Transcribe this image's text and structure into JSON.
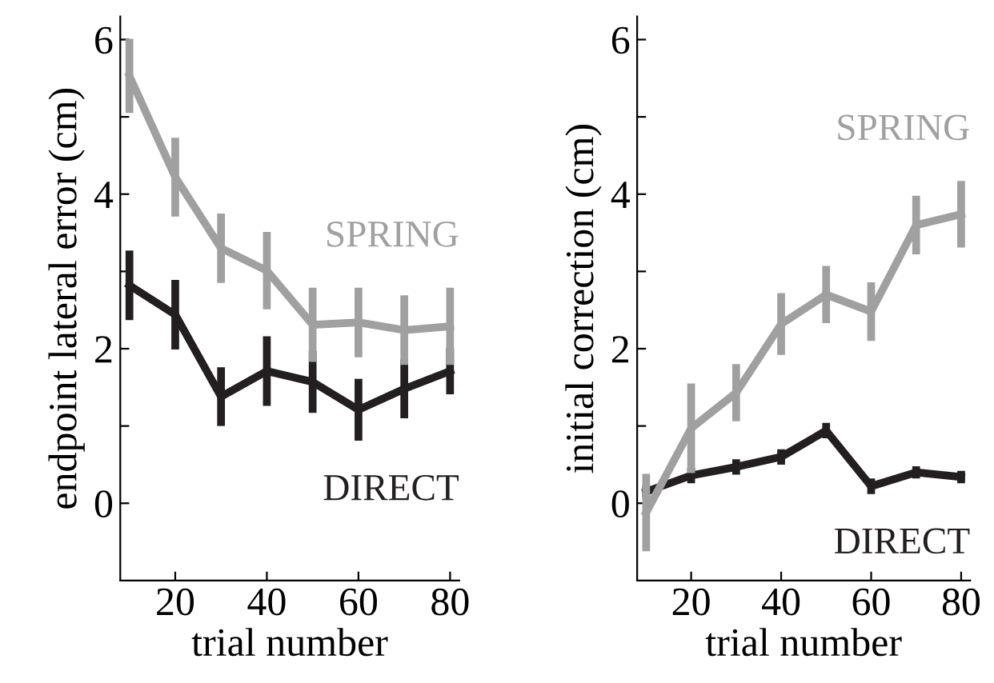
{
  "chart_data": [
    {
      "type": "line",
      "ylabel": "endpoint lateral error (cm)",
      "xlabel": "trial number",
      "x": [
        10,
        20,
        30,
        40,
        50,
        60,
        70,
        80
      ],
      "series": [
        {
          "name": "SPRING",
          "color": "#a0a0a0",
          "values": [
            5.53,
            4.22,
            3.3,
            3.01,
            2.31,
            2.34,
            2.24,
            2.29
          ],
          "errors": [
            0.48,
            0.51,
            0.45,
            0.5,
            0.48,
            0.45,
            0.45,
            0.5
          ]
        },
        {
          "name": "DIRECT",
          "color": "#231f20",
          "values": [
            2.82,
            2.44,
            1.38,
            1.71,
            1.57,
            1.21,
            1.48,
            1.71
          ],
          "errors": [
            0.45,
            0.45,
            0.38,
            0.45,
            0.4,
            0.4,
            0.38,
            0.3
          ]
        }
      ],
      "xlim": [
        8,
        82
      ],
      "ylim": [
        -1,
        6.3
      ],
      "xticks": [
        20,
        40,
        60,
        80
      ],
      "yticks": [
        0,
        {
          "value": 1,
          "label": null
        },
        2,
        {
          "value": 3,
          "label": null
        },
        4,
        {
          "value": 5,
          "label": null
        },
        6
      ],
      "grid": false,
      "legend": false,
      "marker": "none",
      "line_style": "solid"
    },
    {
      "type": "line",
      "ylabel": "initial correction (cm)",
      "xlabel": "trial number",
      "x": [
        10,
        20,
        30,
        40,
        50,
        60,
        70,
        80
      ],
      "series": [
        {
          "name": "SPRING",
          "color": "#a0a0a0",
          "values": [
            -0.12,
            0.97,
            1.43,
            2.32,
            2.7,
            2.48,
            3.6,
            3.74
          ],
          "errors": [
            0.5,
            0.58,
            0.37,
            0.4,
            0.37,
            0.38,
            0.38,
            0.43
          ]
        },
        {
          "name": "DIRECT",
          "color": "#231f20",
          "values": [
            0.15,
            0.36,
            0.47,
            0.6,
            0.94,
            0.22,
            0.4,
            0.34
          ],
          "errors": [
            0.08,
            0.1,
            0.1,
            0.1,
            0.1,
            0.1,
            0.08,
            0.08
          ]
        }
      ],
      "xlim": [
        8,
        82
      ],
      "ylim": [
        -1,
        6.3
      ],
      "xticks": [
        20,
        40,
        60,
        80
      ],
      "yticks": [
        0,
        {
          "value": 1,
          "label": null
        },
        2,
        {
          "value": 3,
          "label": null
        },
        4,
        {
          "value": 5,
          "label": null
        },
        6
      ],
      "grid": false,
      "legend": false,
      "marker": "none",
      "line_style": "solid"
    }
  ]
}
